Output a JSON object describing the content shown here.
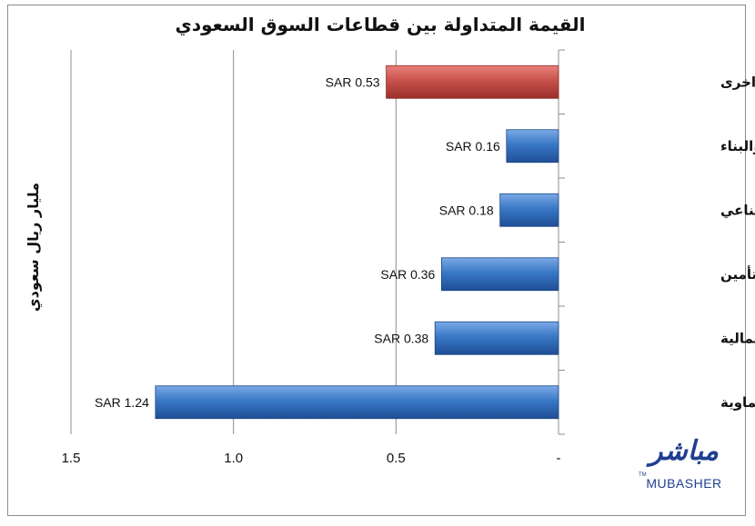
{
  "chart_data": {
    "type": "bar",
    "orientation": "horizontal",
    "title": "القيمة المتداولة بين قطاعات السوق السعودي",
    "ylabel": "مليار ريال سعودي",
    "categories": [
      "قطاعات اخرى",
      "التشييد والبناء",
      "الأستثمار الصناعي",
      "التأمين",
      "المصارف والخدمات المالية",
      "الصناعات والبتروكيماوية"
    ],
    "values": [
      0.53,
      0.16,
      0.18,
      0.36,
      0.38,
      1.24
    ],
    "data_labels": [
      "SAR 0.53",
      "SAR 0.16",
      "SAR 0.18",
      "SAR 0.36",
      "SAR 0.38",
      "SAR 1.24"
    ],
    "highlight_colors": [
      "#c0504d",
      "#2e6fbf",
      "#2e6fbf",
      "#2e6fbf",
      "#2e6fbf",
      "#2e6fbf"
    ],
    "x_ticks": [
      1.5,
      1.0,
      0.5,
      0
    ],
    "x_tick_labels": [
      "1.5",
      "1.0",
      "0.5",
      "-"
    ],
    "xlim": [
      0,
      1.5
    ],
    "x_reversed": true,
    "grid": true
  },
  "logo": {
    "arabic": "مباشر",
    "english": "MUBASHER",
    "tm": "TM"
  },
  "colors": {
    "highlight_bar": "#c0504d",
    "bar": "#2e6fbf",
    "gridline": "#8c8c8c",
    "logo": "#1f3f8f"
  }
}
